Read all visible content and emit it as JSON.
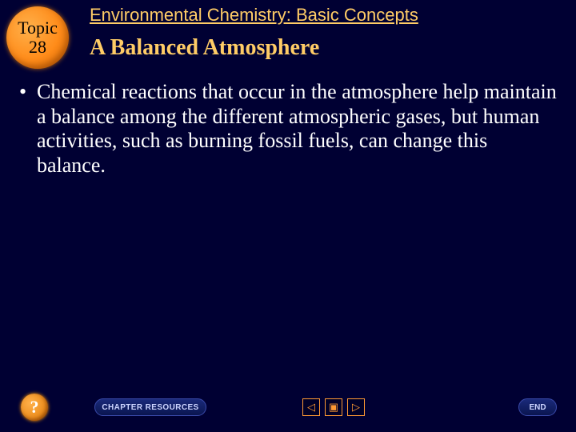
{
  "badge": {
    "line1": "Topic",
    "line2": "28"
  },
  "chapter_title": "Environmental Chemistry: Basic Concepts",
  "section_title": "A Balanced Atmosphere",
  "bullet": {
    "mark": "•",
    "text": "Chemical reactions that occur in the atmosphere help maintain a balance among the different atmospheric gases, but human activities, such as burning fossil fuels, can change this balance."
  },
  "footer": {
    "help": "?",
    "chapter_resources": "CHAPTER RESOURCES",
    "prev": "◁",
    "contents": "▣",
    "next": "▷",
    "end": "END"
  },
  "colors": {
    "background": "#000033",
    "accent": "#ffcc66",
    "badge_gradient_light": "#ffb04a",
    "badge_gradient_dark": "#d96900",
    "body_text": "#ffffff",
    "nav_border": "#ff9933",
    "pill_bg_top": "#1a2a7a",
    "pill_bg_bottom": "#0a1550",
    "pill_text": "#ccd4ff"
  },
  "typography": {
    "chapter_title_fontsize": 22,
    "section_title_fontsize": 28,
    "body_fontsize": 26,
    "badge_fontsize": 22,
    "footer_pill_fontsize": 10
  }
}
